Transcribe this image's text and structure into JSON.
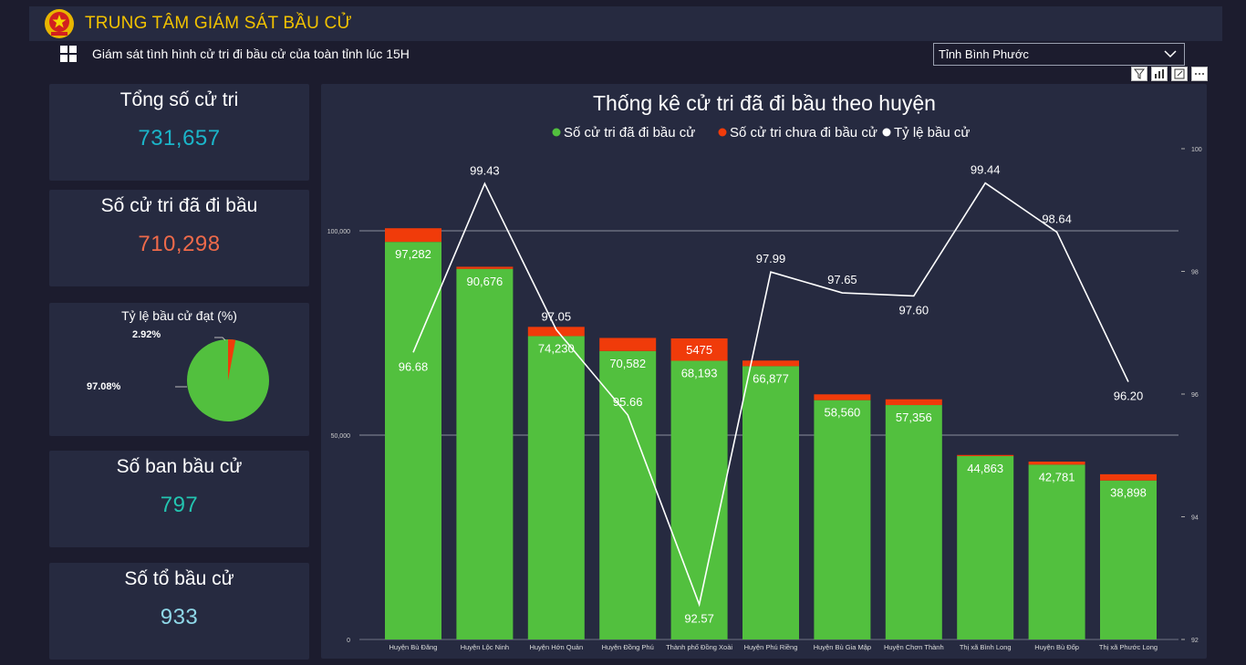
{
  "header": {
    "title": "TRUNG TÂM GIÁM SÁT BẦU CỬ"
  },
  "subtitle": "Giám sát tình hình cử tri đi bầu cử của toàn tỉnh lúc 15H",
  "filter": {
    "selected": "Tỉnh Bình Phước"
  },
  "cards": {
    "total_voters": {
      "title": "Tổng số cử tri",
      "value": "731,657",
      "color": "#1bb5c9"
    },
    "voted": {
      "title": "Số cử tri đã đi bầu",
      "value": "710,298",
      "color": "#ee6a4a"
    },
    "boards": {
      "title": "Số ban bầu cử",
      "value": "797",
      "color": "#23c4b0"
    },
    "groups": {
      "title": "Số tổ bầu cử",
      "value": "933",
      "color": "#8fd8e8"
    }
  },
  "turnout_pie": {
    "title": "Tỷ lệ bầu cử đạt (%)",
    "voted_label": "97.08%",
    "not_voted_label": "2.92%",
    "voted_pct": 97.08,
    "not_voted_pct": 2.92,
    "colors": {
      "voted": "#52c03e",
      "not_voted": "#f03b0a"
    }
  },
  "chart_data": {
    "type": "bar",
    "title": "Thống kê cử tri đã đi bầu theo huyện",
    "legend": [
      "Số cử tri đã đi bầu cử",
      "Số cử tri chưa đi bầu cử",
      "Tỷ lệ bầu cử"
    ],
    "colors": {
      "voted": "#52c03e",
      "not_voted": "#f03b0a",
      "rate": "#ffffff"
    },
    "categories": [
      "Huyện Bù Đăng",
      "Huyện Lộc Ninh",
      "Huyện Hớn Quản",
      "Huyện Đồng Phú",
      "Thành phố Đồng Xoài",
      "Huyện Phú Riềng",
      "Huyện Bù Gia Mập",
      "Huyện Chơn Thành",
      "Thị xã Bình Long",
      "Huyện Bù Đốp",
      "Thị xã Phước Long"
    ],
    "series": [
      {
        "name": "Số cử tri đã đi bầu cử",
        "values": [
          97282,
          90676,
          74230,
          70582,
          68193,
          66877,
          58560,
          57356,
          44863,
          42781,
          38898
        ],
        "labels": [
          "97,282",
          "90,676",
          "74,230",
          "70,582",
          "68,193",
          "66,877",
          "58,560",
          "57,356",
          "44,863",
          "42,781",
          "38,898"
        ]
      },
      {
        "name": "Số cử tri chưa đi bầu cử",
        "values": [
          3340,
          520,
          2260,
          3200,
          5475,
          1370,
          1420,
          1410,
          280,
          740,
          1530
        ],
        "labels": [
          "",
          "",
          "",
          "",
          "5475",
          "",
          "",
          "",
          "",
          "",
          ""
        ]
      },
      {
        "name": "Tỷ lệ bầu cử",
        "values": [
          96.68,
          99.43,
          97.05,
          95.66,
          92.57,
          97.99,
          97.65,
          97.6,
          99.44,
          98.64,
          96.2
        ],
        "labels": [
          "96.68",
          "99.43",
          "97.05",
          "95.66",
          "92.57",
          "97.99",
          "97.65",
          "97.60",
          "99.44",
          "98.64",
          "96.20"
        ]
      }
    ],
    "y_left": {
      "range": [
        0,
        100000
      ],
      "ticks": [
        0,
        50000,
        100000
      ],
      "tick_labels": [
        "0",
        "50,000",
        "100,000"
      ]
    },
    "y_right": {
      "range": [
        92,
        100
      ],
      "ticks": [
        92,
        94,
        96,
        98,
        100
      ],
      "tick_labels": [
        "92",
        "94",
        "96",
        "98",
        "100"
      ]
    },
    "grid": true,
    "legend_position": "top"
  }
}
